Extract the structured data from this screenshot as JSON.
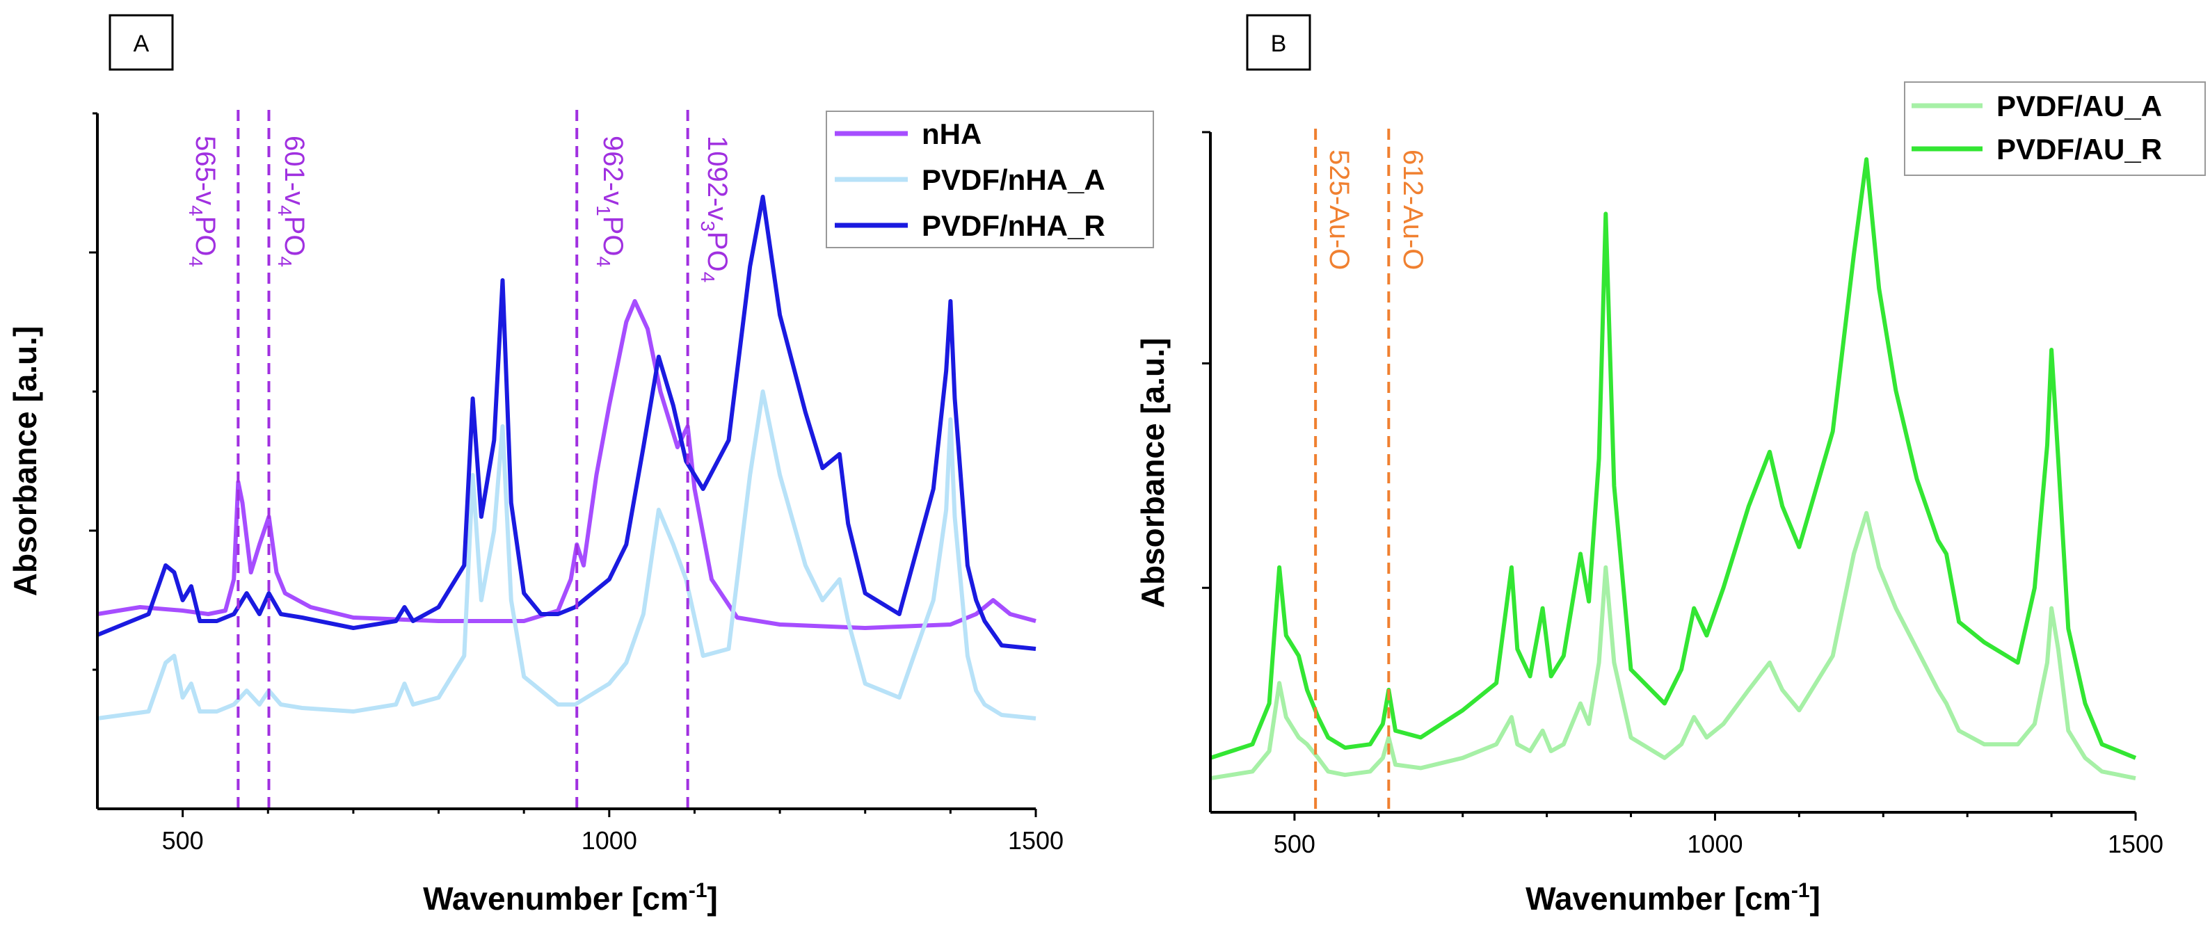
{
  "chart_data": [
    {
      "panel": "A",
      "type": "line",
      "xlabel": "Wavenumber [cm⁻¹]",
      "xlabel_text": "Wavenumber [cm",
      "xlabel_sup": "-1",
      "xlabel_end": "]",
      "ylabel": "Absorbance [a.u.]",
      "xlim": [
        400,
        1500
      ],
      "ylim": [
        0,
        100
      ],
      "xticks": [
        500,
        1000,
        1500
      ],
      "xtick_labels": [
        "500",
        "1000",
        "1500"
      ],
      "legend": {
        "position": "top-right",
        "entries": [
          "nHA",
          "PVDF/nHA_A",
          "PVDF/nHA_R"
        ]
      },
      "annotations": [
        {
          "x": 565,
          "text": "565-ν4PO4",
          "main": "565-v",
          "sub1": "4",
          "mid": "PO",
          "sub2": "4",
          "color": "#a030e0"
        },
        {
          "x": 601,
          "text": "601-ν4PO4",
          "main": "601-v",
          "sub1": "4",
          "mid": "PO",
          "sub2": "4",
          "color": "#a030e0"
        },
        {
          "x": 962,
          "text": "962-ν1PO4",
          "main": "962-v",
          "sub1": "1",
          "mid": "PO",
          "sub2": "4",
          "color": "#a030e0"
        },
        {
          "x": 1092,
          "text": "1092-ν3PO4",
          "main": "1092-v",
          "sub1": "3",
          "mid": "PO",
          "sub2": "4",
          "color": "#a030e0"
        }
      ],
      "series": [
        {
          "name": "nHA",
          "color": "#a64dff",
          "x": [
            400,
            450,
            500,
            530,
            550,
            560,
            565,
            570,
            580,
            590,
            601,
            610,
            620,
            650,
            700,
            800,
            900,
            940,
            955,
            962,
            970,
            985,
            1000,
            1020,
            1030,
            1045,
            1060,
            1080,
            1092,
            1100,
            1120,
            1150,
            1200,
            1300,
            1400,
            1430,
            1450,
            1470,
            1500
          ],
          "y": [
            28,
            29,
            28.5,
            28,
            28.5,
            33,
            47,
            44,
            34,
            38,
            42,
            34,
            31,
            29,
            27.5,
            27,
            27,
            28.5,
            33,
            38,
            35,
            48,
            58,
            70,
            73,
            69,
            60,
            52,
            55,
            46,
            33,
            27.5,
            26.5,
            26,
            26.5,
            28,
            30,
            28,
            27
          ]
        },
        {
          "name": "PVDF/nHA_A",
          "color": "#b8e2f8",
          "x": [
            400,
            430,
            460,
            480,
            490,
            500,
            510,
            520,
            540,
            560,
            575,
            590,
            601,
            615,
            640,
            700,
            750,
            760,
            770,
            800,
            830,
            840,
            850,
            865,
            875,
            885,
            900,
            920,
            940,
            960,
            1000,
            1020,
            1040,
            1058,
            1075,
            1090,
            1110,
            1140,
            1165,
            1180,
            1200,
            1230,
            1250,
            1270,
            1280,
            1300,
            1340,
            1380,
            1395,
            1400,
            1405,
            1420,
            1430,
            1440,
            1460,
            1500
          ],
          "y": [
            13,
            13.5,
            14,
            21,
            22,
            16,
            18,
            14,
            14,
            15,
            17,
            15,
            17,
            15,
            14.5,
            14,
            15,
            18,
            15,
            16,
            22,
            48,
            30,
            40,
            55,
            30,
            19,
            17,
            15,
            15,
            18,
            21,
            28,
            43,
            38,
            33,
            22,
            23,
            48,
            60,
            48,
            35,
            30,
            33,
            27,
            18,
            16,
            30,
            43,
            56,
            42,
            22,
            17,
            15,
            13.5,
            13
          ]
        },
        {
          "name": "PVDF/nHA_R",
          "color": "#1a1ae0",
          "x": [
            400,
            430,
            460,
            480,
            490,
            500,
            510,
            520,
            540,
            560,
            575,
            590,
            601,
            615,
            640,
            700,
            750,
            760,
            770,
            800,
            830,
            840,
            850,
            865,
            875,
            885,
            900,
            920,
            940,
            960,
            1000,
            1020,
            1040,
            1058,
            1075,
            1090,
            1110,
            1140,
            1165,
            1180,
            1200,
            1230,
            1250,
            1270,
            1280,
            1300,
            1340,
            1380,
            1395,
            1400,
            1405,
            1420,
            1430,
            1440,
            1460,
            1500
          ],
          "y": [
            25,
            26.5,
            28,
            35,
            34,
            30,
            32,
            27,
            27,
            28,
            31,
            28,
            31,
            28,
            27.5,
            26,
            27,
            29,
            27,
            29,
            35,
            59,
            42,
            53,
            76,
            44,
            31,
            28,
            28,
            29,
            33,
            38,
            52,
            65,
            58,
            50,
            46,
            53,
            78,
            88,
            71,
            57,
            49,
            51,
            41,
            31,
            28,
            46,
            63,
            73,
            59,
            35,
            30,
            27,
            23.5,
            23
          ]
        }
      ]
    },
    {
      "panel": "B",
      "type": "line",
      "xlabel": "Wavenumber [cm⁻¹]",
      "xlabel_text": "Wavenumber [cm",
      "xlabel_sup": "-1",
      "xlabel_end": "]",
      "ylabel": "Absorbance [a.u.]",
      "xlim": [
        400,
        1500
      ],
      "ylim": [
        0,
        100
      ],
      "xticks": [
        500,
        1000,
        1500
      ],
      "xtick_labels": [
        "500",
        "1000",
        "1500"
      ],
      "legend": {
        "position": "top-right",
        "entries": [
          "PVDF/AU_A",
          "PVDF/AU_R"
        ]
      },
      "annotations": [
        {
          "x": 525,
          "text": "525-Au-O",
          "main": "525-Au-O",
          "color": "#f08030"
        },
        {
          "x": 612,
          "text": "612-Au-O",
          "main": "612-Au-O",
          "color": "#f08030"
        }
      ],
      "series": [
        {
          "name": "PVDF/AU_A",
          "color": "#a6f0a6",
          "x": [
            400,
            450,
            470,
            482,
            490,
            505,
            515,
            528,
            540,
            560,
            590,
            605,
            612,
            620,
            650,
            700,
            740,
            758,
            765,
            780,
            795,
            805,
            820,
            840,
            850,
            862,
            870,
            880,
            900,
            940,
            960,
            975,
            990,
            1010,
            1040,
            1065,
            1080,
            1100,
            1140,
            1165,
            1180,
            1195,
            1215,
            1240,
            1265,
            1275,
            1290,
            1320,
            1360,
            1380,
            1395,
            1400,
            1408,
            1420,
            1440,
            1460,
            1500
          ],
          "y": [
            5,
            6,
            9,
            19,
            14,
            11,
            10,
            8,
            6,
            5.5,
            6,
            8,
            11,
            7,
            6.5,
            8,
            10,
            14,
            10,
            9,
            12,
            9,
            10,
            16,
            13,
            22,
            36,
            22,
            11,
            8,
            10,
            14,
            11,
            13,
            18,
            22,
            18,
            15,
            23,
            38,
            44,
            36,
            30,
            24,
            18,
            16,
            12,
            10,
            10,
            13,
            22,
            30,
            24,
            12,
            8,
            6,
            5
          ]
        },
        {
          "name": "PVDF/AU_R",
          "color": "#33e633",
          "x": [
            400,
            450,
            470,
            482,
            490,
            505,
            515,
            528,
            540,
            560,
            590,
            605,
            612,
            620,
            650,
            700,
            740,
            758,
            765,
            780,
            795,
            805,
            820,
            840,
            850,
            862,
            870,
            880,
            900,
            940,
            960,
            975,
            990,
            1010,
            1040,
            1065,
            1080,
            1100,
            1140,
            1165,
            1180,
            1195,
            1215,
            1240,
            1265,
            1275,
            1290,
            1320,
            1360,
            1380,
            1395,
            1400,
            1408,
            1420,
            1440,
            1460,
            1500
          ],
          "y": [
            8,
            10,
            16,
            36,
            26,
            23,
            18,
            14,
            11,
            9.5,
            10,
            13,
            18,
            12,
            11,
            15,
            19,
            36,
            24,
            20,
            30,
            20,
            23,
            38,
            31,
            52,
            88,
            48,
            21,
            16,
            21,
            30,
            26,
            33,
            45,
            53,
            45,
            39,
            56,
            82,
            96,
            77,
            62,
            49,
            40,
            38,
            28,
            25,
            22,
            33,
            54,
            68,
            52,
            27,
            16,
            10,
            8
          ]
        }
      ]
    }
  ]
}
